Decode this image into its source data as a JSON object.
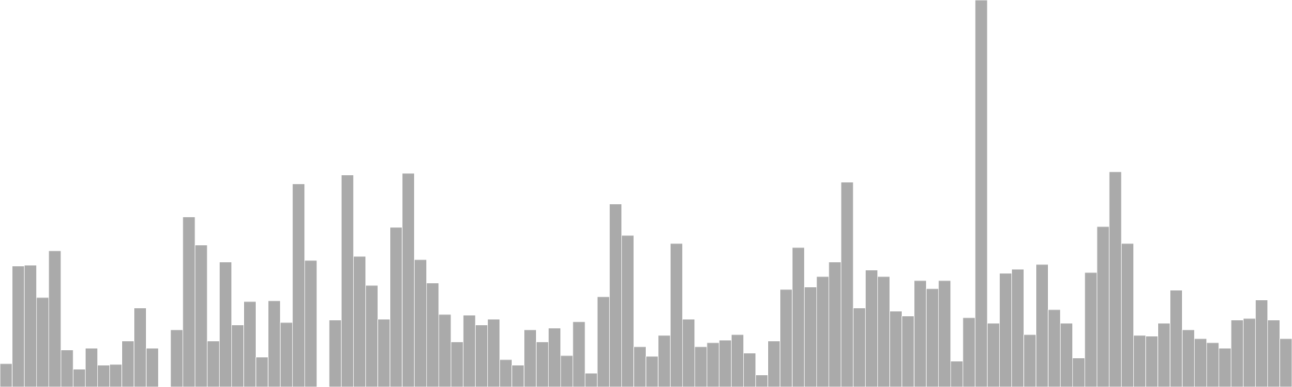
{
  "chart_data": {
    "type": "bar",
    "title": "",
    "xlabel": "",
    "ylabel": "",
    "ylim": [
      0,
      480
    ],
    "grid": false,
    "legend": "none",
    "bar_color": "#aaaaaa",
    "edge_color": "#ffffff",
    "values": [
      29,
      150,
      151,
      111,
      169,
      46,
      22,
      48,
      27,
      28,
      57,
      98,
      48,
      0,
      71,
      211,
      176,
      57,
      155,
      77,
      106,
      37,
      107,
      80,
      252,
      157,
      0,
      83,
      263,
      162,
      126,
      84,
      198,
      265,
      158,
      129,
      90,
      56,
      89,
      77,
      84,
      34,
      27,
      71,
      56,
      73,
      39,
      81,
      17,
      112,
      227,
      188,
      50,
      38,
      64,
      178,
      84,
      50,
      55,
      58,
      65,
      42,
      15,
      57,
      121,
      173,
      124,
      137,
      155,
      254,
      98,
      145,
      137,
      94,
      88,
      132,
      122,
      132,
      32,
      86,
      480,
      79,
      141,
      146,
      65,
      152,
      96,
      79,
      36,
      142,
      199,
      267,
      178,
      64,
      63,
      79,
      120,
      71,
      60,
      55,
      48,
      83,
      85,
      108,
      83,
      60
    ]
  }
}
